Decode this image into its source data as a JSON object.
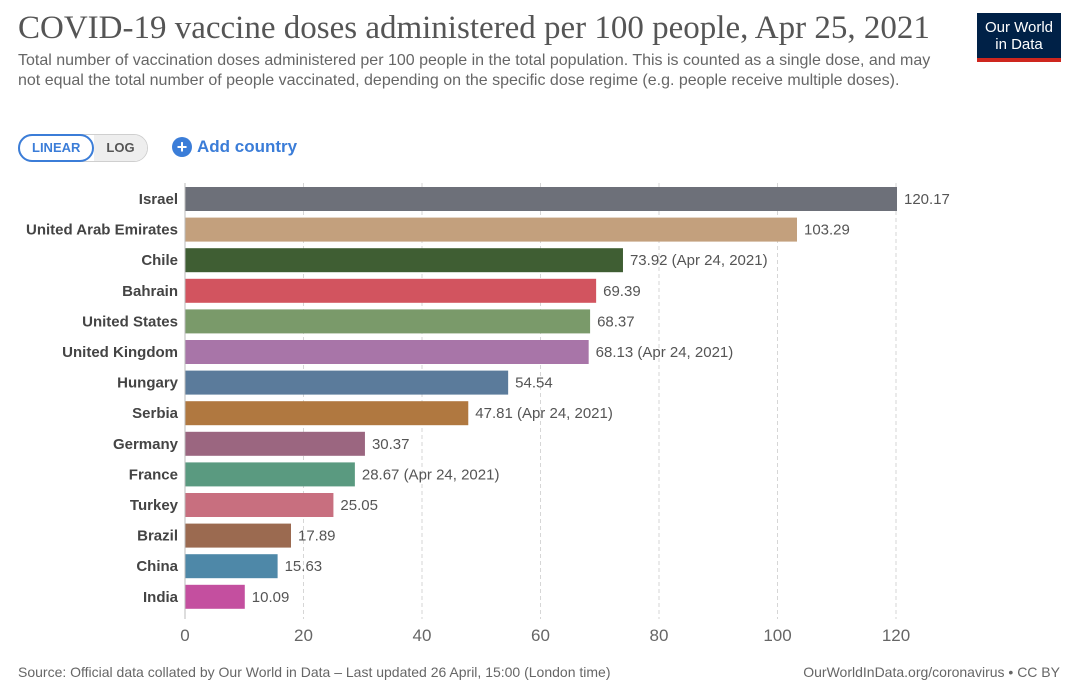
{
  "header": {
    "title": "COVID-19 vaccine doses administered per 100 people, Apr 25, 2021",
    "subtitle": "Total number of vaccination doses administered per 100 people in the total population. This is counted as a single dose, and may not equal the total number of people vaccinated, depending on the specific dose regime (e.g. people receive multiple doses)."
  },
  "logo": {
    "line1": "Our World",
    "line2": "in Data",
    "bg_color": "#002147",
    "accent_color": "#ce261e"
  },
  "controls": {
    "linear_label": "LINEAR",
    "log_label": "LOG",
    "selected_scale": "linear",
    "add_country_label": "Add country",
    "add_icon": "plus-circle-icon"
  },
  "chart_data": {
    "type": "bar",
    "orientation": "horizontal",
    "categories": [
      "Israel",
      "United Arab Emirates",
      "Chile",
      "Bahrain",
      "United States",
      "United Kingdom",
      "Hungary",
      "Serbia",
      "Germany",
      "France",
      "Turkey",
      "Brazil",
      "China",
      "India"
    ],
    "values": [
      120.17,
      103.29,
      73.92,
      69.39,
      68.37,
      68.13,
      54.54,
      47.81,
      30.37,
      28.67,
      25.05,
      17.89,
      15.63,
      10.09
    ],
    "value_labels": [
      "120.17",
      "103.29",
      "73.92 (Apr 24, 2021)",
      "69.39",
      "68.37",
      "68.13 (Apr 24, 2021)",
      "54.54",
      "47.81 (Apr 24, 2021)",
      "30.37",
      "28.67 (Apr 24, 2021)",
      "25.05",
      "17.89",
      "15.63",
      "10.09"
    ],
    "colors": [
      "#6d7079",
      "#c3a07d",
      "#3f5e33",
      "#d2545f",
      "#7a9a6a",
      "#a875a8",
      "#5b7b9b",
      "#b07840",
      "#9b6680",
      "#5a9a80",
      "#c86f7f",
      "#9b6a50",
      "#4e88a8",
      "#c44f9f"
    ],
    "xlim": [
      0,
      120
    ],
    "xticks": [
      "0",
      "20",
      "40",
      "60",
      "80",
      "100",
      "120"
    ],
    "grid": true
  },
  "footer": {
    "source": "Source: Official data collated by Our World in Data – Last updated 26 April, 15:00 (London time)",
    "link": "OurWorldInData.org/coronavirus • CC BY"
  }
}
